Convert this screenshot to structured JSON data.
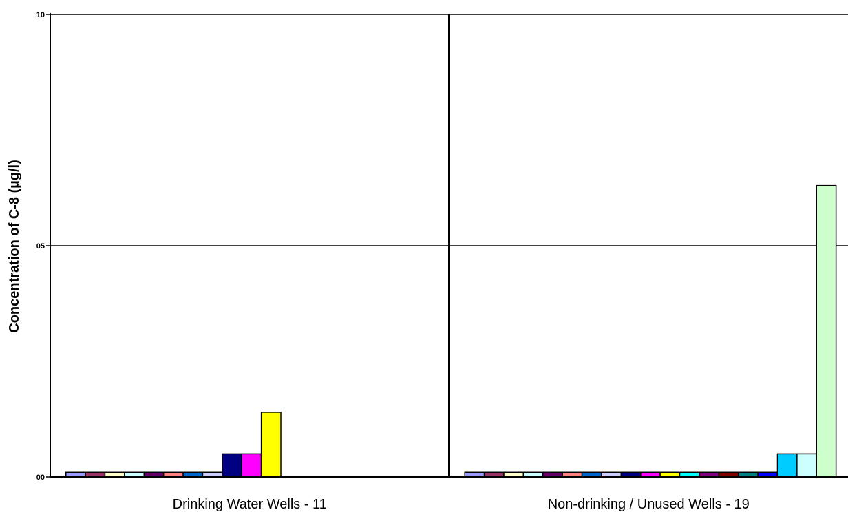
{
  "chart_data": {
    "type": "bar",
    "ylabel": "Concentration of C-8 (µg/l)",
    "ylim": [
      0,
      1.0
    ],
    "yticks": [
      {
        "value": 0.0,
        "label": "00"
      },
      {
        "value": 0.5,
        "label": "05"
      },
      {
        "value": 1.0,
        "label": "10"
      }
    ],
    "grid": true,
    "groups": [
      {
        "label": "Drinking Water Wells - 11",
        "slots": 19,
        "bars": [
          {
            "value": 0.01,
            "color": "#9999ff"
          },
          {
            "value": 0.01,
            "color": "#993366"
          },
          {
            "value": 0.01,
            "color": "#ffffcc"
          },
          {
            "value": 0.01,
            "color": "#ccffff"
          },
          {
            "value": 0.01,
            "color": "#660066"
          },
          {
            "value": 0.01,
            "color": "#ff8080"
          },
          {
            "value": 0.01,
            "color": "#0066cc"
          },
          {
            "value": 0.01,
            "color": "#ccccff"
          },
          {
            "value": 0.05,
            "color": "#000080"
          },
          {
            "value": 0.05,
            "color": "#ff00ff"
          },
          {
            "value": 0.14,
            "color": "#ffff00"
          }
        ]
      },
      {
        "label": "Non-drinking / Unused Wells - 19",
        "slots": 19,
        "bars": [
          {
            "value": 0.01,
            "color": "#9999ff"
          },
          {
            "value": 0.01,
            "color": "#993366"
          },
          {
            "value": 0.01,
            "color": "#ffffcc"
          },
          {
            "value": 0.01,
            "color": "#ccffff"
          },
          {
            "value": 0.01,
            "color": "#660066"
          },
          {
            "value": 0.01,
            "color": "#ff8080"
          },
          {
            "value": 0.01,
            "color": "#0066cc"
          },
          {
            "value": 0.01,
            "color": "#ccccff"
          },
          {
            "value": 0.01,
            "color": "#000080"
          },
          {
            "value": 0.01,
            "color": "#ff00ff"
          },
          {
            "value": 0.01,
            "color": "#ffff00"
          },
          {
            "value": 0.01,
            "color": "#00ffff"
          },
          {
            "value": 0.01,
            "color": "#800080"
          },
          {
            "value": 0.01,
            "color": "#800000"
          },
          {
            "value": 0.01,
            "color": "#008080"
          },
          {
            "value": 0.01,
            "color": "#0000ff"
          },
          {
            "value": 0.05,
            "color": "#00ccff"
          },
          {
            "value": 0.05,
            "color": "#ccffff"
          },
          {
            "value": 0.63,
            "color": "#ccffcc"
          }
        ]
      }
    ]
  }
}
